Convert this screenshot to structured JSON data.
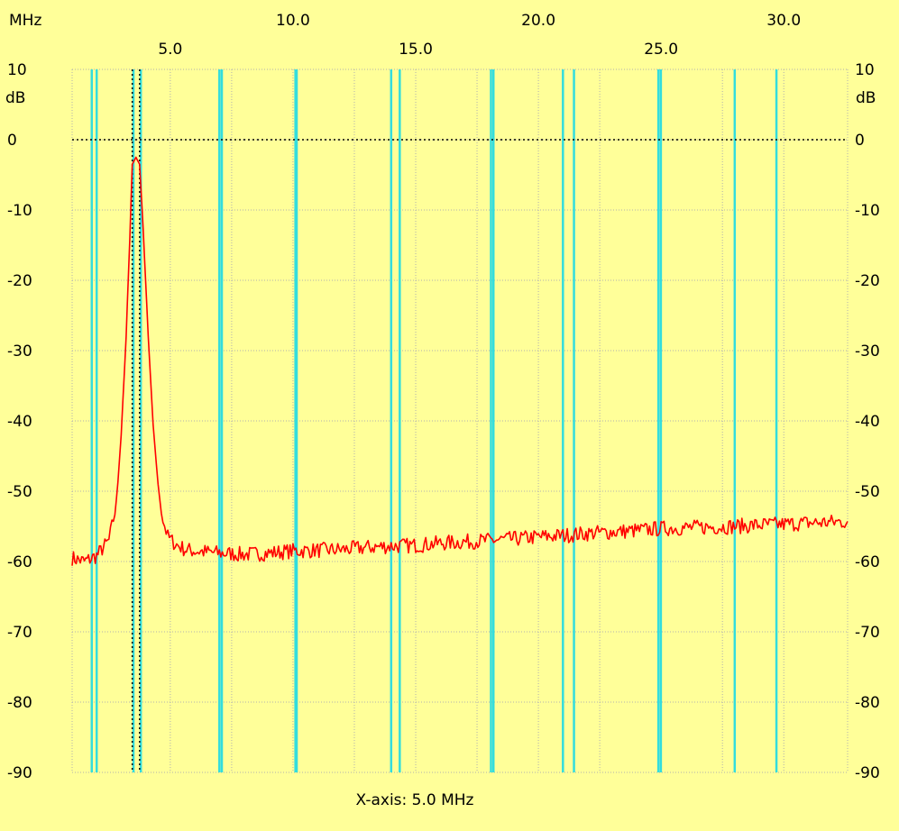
{
  "chart_data": {
    "type": "line",
    "title": "",
    "xlabel": "X-axis: 5.0 MHz",
    "x_unit": "MHz",
    "y_unit": "dB",
    "xlim": [
      1.0,
      32.6
    ],
    "ylim": [
      -90,
      10
    ],
    "x_ticks_top_row": [
      "10.0",
      "20.0",
      "30.0"
    ],
    "x_ticks_bottom_row": [
      "5.0",
      "15.0",
      "25.0"
    ],
    "y_ticks": [
      "10",
      "0",
      "-10",
      "-20",
      "-30",
      "-40",
      "-50",
      "-60",
      "-70",
      "-80",
      "-90"
    ],
    "grid": true,
    "reference_line_db": 0,
    "band_markers_mhz": [
      1.8,
      2.0,
      3.5,
      3.8,
      7.0,
      7.1,
      10.1,
      10.15,
      14.0,
      14.35,
      18.068,
      18.168,
      21.0,
      21.45,
      24.89,
      24.99,
      28.0,
      29.7
    ],
    "center_markers_mhz": [
      3.45,
      3.75
    ],
    "series": [
      {
        "name": "",
        "color": "#ff0000",
        "x": [
          1.0,
          1.5,
          2.0,
          2.5,
          2.8,
          3.0,
          3.2,
          3.35,
          3.45,
          3.6,
          3.75,
          3.9,
          4.1,
          4.3,
          4.5,
          4.7,
          4.9,
          5.2,
          5.6,
          6.0,
          7.0,
          8.0,
          9.0,
          10.0,
          11.0,
          12.0,
          13.0,
          14.0,
          15.0,
          16.0,
          17.0,
          18.0,
          19.0,
          20.0,
          21.0,
          22.0,
          23.0,
          24.0,
          25.0,
          26.0,
          27.0,
          28.0,
          29.0,
          30.0,
          31.0,
          32.0,
          32.6
        ],
        "values": [
          -59.5,
          -60.0,
          -59.2,
          -57.0,
          -52.0,
          -42.0,
          -28.0,
          -14.0,
          -3.5,
          -2.5,
          -3.5,
          -13.0,
          -28.0,
          -40.5,
          -49.0,
          -54.0,
          -56.5,
          -57.5,
          -58.3,
          -58.5,
          -58.8,
          -59.0,
          -58.8,
          -58.5,
          -58.4,
          -58.3,
          -58.0,
          -57.8,
          -57.7,
          -57.4,
          -57.2,
          -57.0,
          -56.8,
          -56.5,
          -56.3,
          -56.0,
          -55.8,
          -55.6,
          -55.3,
          -55.2,
          -55.1,
          -55.0,
          -54.8,
          -54.7,
          -54.5,
          -54.4,
          -54.3
        ]
      }
    ]
  }
}
